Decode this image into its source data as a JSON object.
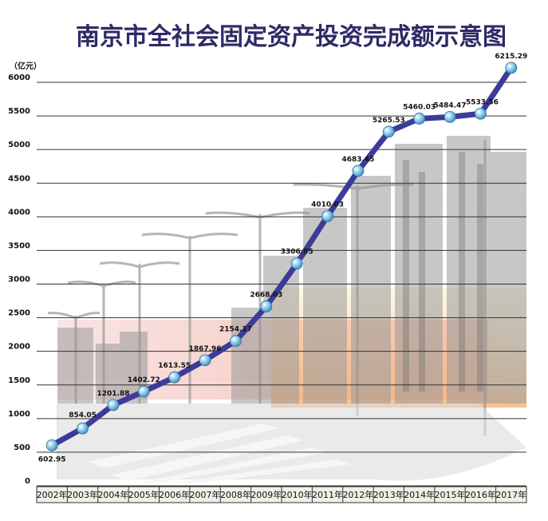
{
  "chart_data": {
    "type": "line",
    "title": "南京市全社会固定资产投资完成额示意图",
    "unit_label": "（亿元）",
    "ylim": [
      0,
      6000
    ],
    "yticks": [
      0,
      500,
      1000,
      1500,
      2000,
      2500,
      3000,
      3500,
      4000,
      4500,
      5000,
      5500,
      6000
    ],
    "grid": true,
    "categories": [
      "2002年",
      "2003年",
      "2004年",
      "2005年",
      "2006年",
      "2007年",
      "2008年",
      "2009年",
      "2010年",
      "2011年",
      "2012年",
      "2013年",
      "2014年",
      "2015年",
      "2016年",
      "2017年"
    ],
    "values": [
      602.95,
      854.05,
      1201.88,
      1402.72,
      1613.55,
      1867.96,
      2154.17,
      2668.03,
      3306.05,
      4010.03,
      4683.45,
      5265.53,
      5460.03,
      5484.47,
      5533.56,
      6215.29
    ],
    "value_labels": [
      "602.95",
      "854.05",
      "1201.88",
      "1402.72",
      "1613.55",
      "1867.96",
      "2154.17",
      "2668.03",
      "3306.05",
      "4010.03",
      "4683.45",
      "5265.53",
      "5460.03",
      "5484.47",
      "5533.56",
      "6215.29"
    ],
    "colors": {
      "line": "#3b3c9a",
      "marker": "#7fc4e6",
      "grid": "#333333",
      "title": "#2e2a66"
    }
  }
}
